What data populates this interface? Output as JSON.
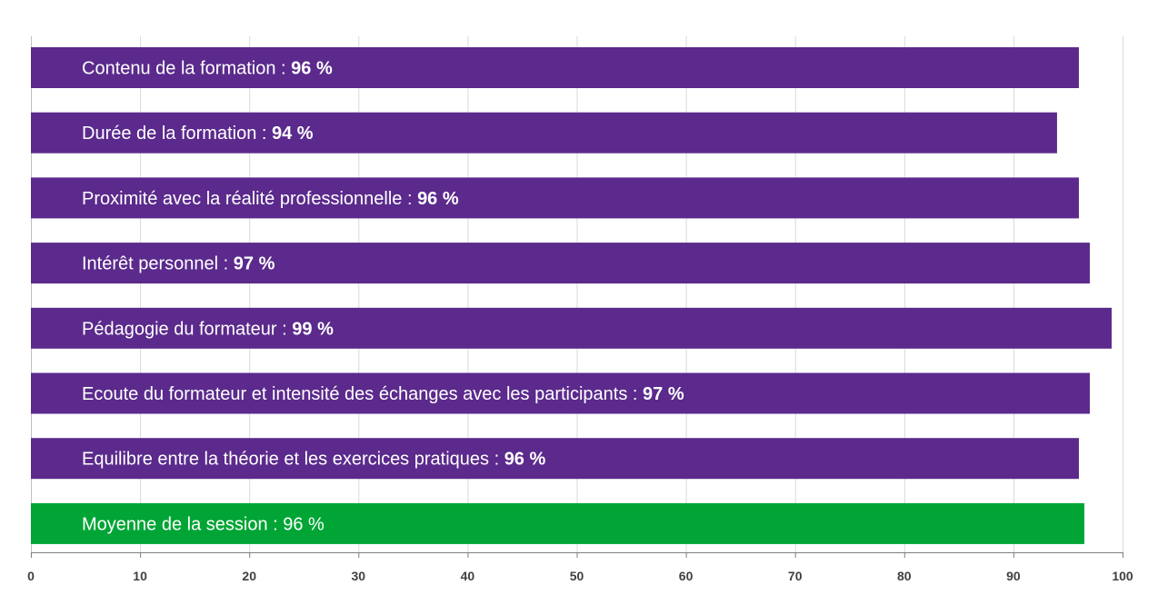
{
  "chart_data": {
    "type": "bar",
    "orientation": "horizontal",
    "categories": [
      "Contenu de la formation",
      "Durée de la formation",
      "Proximité avec la réalité professionnelle",
      "Intérêt personnel",
      "Pédagogie du formateur",
      "Ecoute du formateur et intensité des échanges avec les participants",
      "Equilibre entre la théorie et les exercices pratiques",
      "Moyenne de la session"
    ],
    "values": [
      96,
      94,
      96,
      97,
      99,
      97,
      96,
      96.5
    ],
    "value_labels": [
      "96 %",
      "94 %",
      "96 %",
      "97 %",
      "99 %",
      "97 %",
      "96 %",
      "96 %"
    ],
    "value_label_bold": [
      true,
      true,
      true,
      true,
      true,
      true,
      true,
      false
    ],
    "bar_colors": [
      "#5b2a8c",
      "#5b2a8c",
      "#5b2a8c",
      "#5b2a8c",
      "#5b2a8c",
      "#5b2a8c",
      "#5b2a8c",
      "#00a535"
    ],
    "xlim": [
      0,
      100
    ],
    "xticks": [
      0,
      10,
      20,
      30,
      40,
      50,
      60,
      70,
      80,
      90,
      100
    ],
    "grid": "vertical",
    "legend": "none",
    "title": "",
    "xlabel": "",
    "ylabel": ""
  }
}
